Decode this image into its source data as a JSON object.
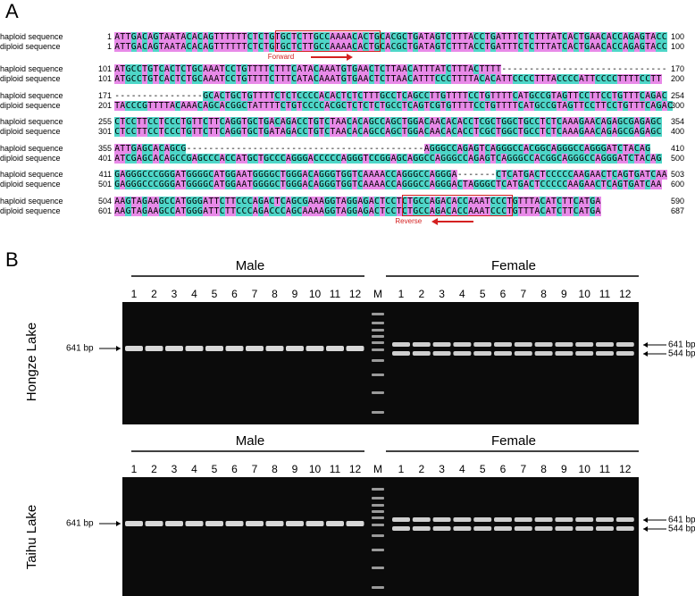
{
  "panel_a": {
    "label": "A",
    "forward": "Forward",
    "reverse": "Reverse",
    "rows": [
      {
        "haploid": {
          "name": "haploid sequence",
          "start": 1,
          "seq": "ATTGACAGTAATACACAGTTTTTTCTCTGTGCTCTTGCCAAAACACTGCACGCTGATAGTCTTTACCTGATTTCTCTTTATCACTGAACACCAGAGTACC",
          "end": 100
        },
        "diploid": {
          "name": "diploid sequence",
          "start": 1,
          "seq": "ATTGACAGTAATACACAGTTTTTTCTCTGTGCTCTTGCCAAAACACTGCACGCTGATAGTCTTTACCTGATTTCTCTTTATCACTGAACACCAGAGTACC",
          "end": 100
        }
      },
      {
        "haploid": {
          "name": "haploid sequence",
          "start": 101,
          "seq": "ATGCCTGTCACTCTGCAAATCCTGTTTTCTTTCATACAAATGTGAACTCTTAACATTTATCTTTACTTTT------------------------------",
          "end": 170
        },
        "diploid": {
          "name": "diploid sequence",
          "start": 101,
          "seq": "ATGCCTGTCACTCTGCAAATCCTGTTTTCTTTCATACAAATGTGAACTCTTAACATTTCCCTTTTACACATTCCCCTTTACCCCATTCCCCTTTTCCTT",
          "end": 200
        }
      },
      {
        "haploid": {
          "name": "haploid sequence",
          "start": 171,
          "seq": "----------------GCACTGCTGTTTTCTCTCCCCACACTCTCTTTGCCTCAGCCTTGTTTTCCTGTTTTCATGCCGTAGTTCCTTCCTGTTTCAGAC",
          "end": 254
        },
        "diploid": {
          "name": "diploid sequence",
          "start": 201,
          "seq": "TACCCGTTTTACAAACAGCACGGCTATTTTCTGTCCCCACGCTCTCTCTGCCTCAGTCGTGTTTTCCTGTTTTCATGCCGTAGTTCCTTCCTGTTTCAGAC",
          "end": 300
        }
      },
      {
        "haploid": {
          "name": "haploid sequence",
          "start": 255,
          "seq": "CTCCTTCCTCCCTGTTCTTCAGGTGCTGACAGACCTGTCTAACACAGCCAGCTGGACAACACACCTCGCTGGCTGCCTCTCAAAGAACAGAGCGAGAGC",
          "end": 354
        },
        "diploid": {
          "name": "diploid sequence",
          "start": 301,
          "seq": "CTCCTTCCTCCCTGTTCTTCAGGTGCTGATAGACCTGTCTAACACAGCCAGCTGGACAACACACCTCGCTGGCTGCCTCTCAAAGAACAGAGCGAGAGC",
          "end": 400
        }
      },
      {
        "haploid": {
          "name": "haploid sequence",
          "start": 355,
          "seq": "ATTGAGCACAGCG-------------------------------------------AGGGCCAGAGTCAGGGCCACGGCAGGGCCAGGGATCTACAG",
          "end": 410
        },
        "diploid": {
          "name": "diploid sequence",
          "start": 401,
          "seq": "ATCGAGCACAGCCGAGCCCACCATGCTGCCCAGGGACCCCCAGGGTCCGGAGCAGGCCAGGGCCAGAGTCAGGGCCACGGCAGGGCCAGGGATCTACAG",
          "end": 500
        }
      },
      {
        "haploid": {
          "name": "haploid sequence",
          "start": 411,
          "seq": "GAGGGCCCGGGATGGGGCATGGAATGGGGCTGGGACAGGGTGGTCAAAACCAGGGCCAGGGA-------CTCATGACTCCCCCAAGAACTCAGTGATCAA",
          "end": 503
        },
        "diploid": {
          "name": "diploid sequence",
          "start": 501,
          "seq": "GAGGGCCCGGGATGGGGCATGGAATGGGGCTGGGACAGGGTGGTCAAAACCAGGGCCAGGGACTAGGGCTCATGACTCCCCCAAGAACTCAGTGATCAA",
          "end": 600
        }
      },
      {
        "haploid": {
          "name": "haploid sequence",
          "start": 504,
          "seq": "AAGTAGAAGCCATGGGATTCTTCCCAGACTCAGCGAAAGGTAGGAGACTCCTCTGCCAGACACCAAATCCCTGTTTACATCTTCATGA",
          "end": 590
        },
        "diploid": {
          "name": "diploid sequence",
          "start": 601,
          "seq": "AAGTAGAAGCCATGGGATTCTTCCCAGACCCAGCAAAAGGTAGGAGACTCCTCTGCCAGACACCAAATCCCTGTTTACATCTTCATGA",
          "end": 687
        }
      }
    ]
  },
  "panel_b": {
    "label": "B",
    "gels": [
      {
        "site": "Hongze Lake",
        "groups": [
          "Male",
          "Female"
        ],
        "lanes": [
          "1",
          "2",
          "3",
          "4",
          "5",
          "6",
          "7",
          "8",
          "9",
          "10",
          "11",
          "12",
          "M",
          "1",
          "2",
          "3",
          "4",
          "5",
          "6",
          "7",
          "8",
          "9",
          "10",
          "11",
          "12"
        ],
        "left_marker": "641 bp",
        "right_markers": [
          "641 bp",
          "544 bp"
        ]
      },
      {
        "site": "Taihu Lake",
        "groups": [
          "Male",
          "Female"
        ],
        "lanes": [
          "1",
          "2",
          "3",
          "4",
          "5",
          "6",
          "7",
          "8",
          "9",
          "10",
          "11",
          "12",
          "M",
          "1",
          "2",
          "3",
          "4",
          "5",
          "6",
          "7",
          "8",
          "9",
          "10",
          "11",
          "12"
        ],
        "left_marker": "641 bp",
        "right_markers": [
          "641 bp",
          "544 bp"
        ]
      }
    ]
  }
}
